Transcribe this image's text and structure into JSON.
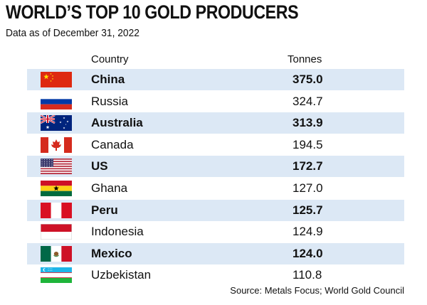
{
  "header": {
    "title": "WORLD’S TOP 10 GOLD PRODUCERS",
    "subtitle": "Data as of December 31, 2022"
  },
  "chart_data": {
    "type": "table",
    "title": "WORLD’S TOP 10 GOLD PRODUCERS",
    "subtitle": "Data as of December 31, 2022",
    "columns": [
      "Country",
      "Tonnes"
    ],
    "rows": [
      {
        "country": "China",
        "tonnes": "375.0",
        "flag_icon": "china-flag-icon"
      },
      {
        "country": "Russia",
        "tonnes": "324.7",
        "flag_icon": "russia-flag-icon"
      },
      {
        "country": "Australia",
        "tonnes": "313.9",
        "flag_icon": "australia-flag-icon"
      },
      {
        "country": "Canada",
        "tonnes": "194.5",
        "flag_icon": "canada-flag-icon"
      },
      {
        "country": "US",
        "tonnes": "172.7",
        "flag_icon": "us-flag-icon"
      },
      {
        "country": "Ghana",
        "tonnes": "127.0",
        "flag_icon": "ghana-flag-icon"
      },
      {
        "country": "Peru",
        "tonnes": "125.7",
        "flag_icon": "peru-flag-icon"
      },
      {
        "country": "Indonesia",
        "tonnes": "124.9",
        "flag_icon": "indonesia-flag-icon"
      },
      {
        "country": "Mexico",
        "tonnes": "124.0",
        "flag_icon": "mexico-flag-icon"
      },
      {
        "country": "Uzbekistan",
        "tonnes": "110.8",
        "flag_icon": "uzbekistan-flag-icon"
      }
    ],
    "source": "Source: Metals Focus; World Gold Council"
  },
  "colors": {
    "stripe": "#dce8f5"
  }
}
